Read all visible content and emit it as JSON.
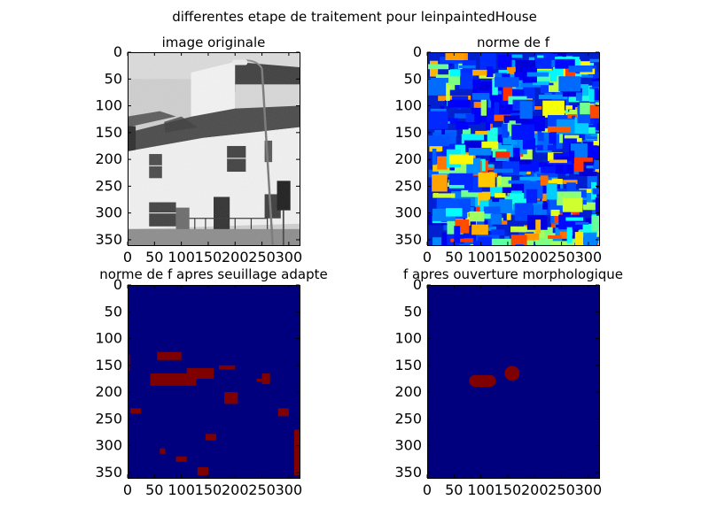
{
  "figure": {
    "suptitle": "differentes etape de traitement pour leinpaintedHouse"
  },
  "chart_data": [
    {
      "type": "image",
      "title": "image originale",
      "content": "grayscale photograph of a two-storey white house with a tiled roof, a street lamp and a traffic light",
      "colormap": "gray",
      "xticks": [
        0,
        50,
        100,
        150,
        200,
        250,
        300
      ],
      "yticks": [
        0,
        50,
        100,
        150,
        200,
        250,
        300,
        350
      ],
      "xlim": [
        0,
        320
      ],
      "ylim": [
        360,
        0
      ]
    },
    {
      "type": "heatmap",
      "title": "norme de f",
      "colormap": "jet",
      "xticks": [
        0,
        50,
        100,
        150,
        200,
        250,
        300
      ],
      "yticks": [
        0,
        50,
        100,
        150,
        200,
        250,
        300,
        350
      ],
      "xlim": [
        0,
        320
      ],
      "ylim": [
        360,
        0
      ]
    },
    {
      "type": "heatmap",
      "title": "norme de f apres seuillage adapte",
      "colormap": "jet",
      "binary": true,
      "xticks": [
        0,
        50,
        100,
        150,
        200,
        250,
        300
      ],
      "yticks": [
        0,
        50,
        100,
        150,
        200,
        250,
        300,
        350
      ],
      "xlim": [
        0,
        320
      ],
      "ylim": [
        360,
        0
      ],
      "regions": [
        {
          "x0": 42,
          "x1": 128,
          "y0": 165,
          "y1": 188
        },
        {
          "x0": 110,
          "x1": 160,
          "y0": 155,
          "y1": 175
        },
        {
          "x0": 55,
          "x1": 100,
          "y0": 125,
          "y1": 140
        },
        {
          "x0": 170,
          "x1": 200,
          "y0": 150,
          "y1": 158
        },
        {
          "x0": 180,
          "x1": 205,
          "y0": 200,
          "y1": 222
        },
        {
          "x0": 145,
          "x1": 165,
          "y0": 278,
          "y1": 290
        },
        {
          "x0": 250,
          "x1": 265,
          "y0": 165,
          "y1": 185
        },
        {
          "x0": 280,
          "x1": 300,
          "y0": 230,
          "y1": 245
        },
        {
          "x0": 310,
          "x1": 320,
          "y0": 270,
          "y1": 355
        },
        {
          "x0": 5,
          "x1": 25,
          "y0": 230,
          "y1": 240
        },
        {
          "x0": 90,
          "x1": 110,
          "y0": 320,
          "y1": 330
        },
        {
          "x0": 130,
          "x1": 150,
          "y0": 340,
          "y1": 355
        },
        {
          "x0": 0,
          "x1": 4,
          "y0": 130,
          "y1": 160
        },
        {
          "x0": 240,
          "x1": 255,
          "y0": 175,
          "y1": 180
        },
        {
          "x0": 60,
          "x1": 70,
          "y0": 305,
          "y1": 315
        }
      ]
    },
    {
      "type": "heatmap",
      "title": "f apres ouverture  morphologique",
      "colormap": "jet",
      "binary": true,
      "xticks": [
        0,
        50,
        100,
        150,
        200,
        250,
        300
      ],
      "yticks": [
        0,
        50,
        100,
        150,
        200,
        250,
        300,
        350
      ],
      "xlim": [
        0,
        320
      ],
      "ylim": [
        360,
        0
      ],
      "regions": [
        {
          "shape": "rounded-bar",
          "x0": 78,
          "x1": 128,
          "y0": 168,
          "y1": 190
        },
        {
          "shape": "circle",
          "cx": 158,
          "cy": 165,
          "r": 14
        }
      ]
    }
  ],
  "colors": {
    "jet_low": "#00007f",
    "jet_high": "#7f0000",
    "background": "#ffffff"
  }
}
